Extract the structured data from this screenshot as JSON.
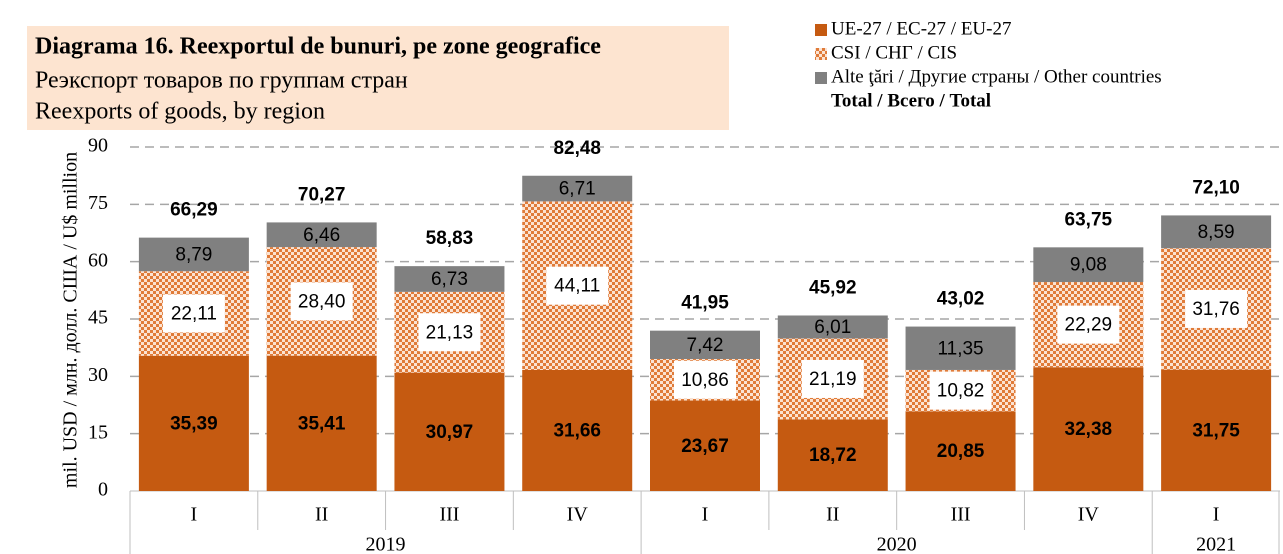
{
  "chart_data": {
    "type": "stacked_bar",
    "title": "Diagrama 16. Reexportul de bunuri, pe zone geografice",
    "subtitle": [
      "Реэкспорт товаров по группам стран",
      "Reexports of goods, by region"
    ],
    "y_label": "mil. USD / млн. долл. США / U$ million",
    "categories": [
      "I",
      "II",
      "III",
      "IV",
      "I",
      "II",
      "III",
      "IV",
      "I"
    ],
    "years": [
      "2019",
      "2019",
      "2019",
      "2019",
      "2020",
      "2020",
      "2020",
      "2020",
      "2021"
    ],
    "series": [
      {
        "name": "UE-27 / ЕС-27 / EU-27",
        "color": "#c55a11",
        "values": [
          35.39,
          35.41,
          30.97,
          31.66,
          23.67,
          18.72,
          20.85,
          32.38,
          31.75
        ],
        "value_labels": [
          "35,39",
          "35,41",
          "30,97",
          "31,66",
          "23,67",
          "18,72",
          "20,85",
          "32,38",
          "31,75"
        ]
      },
      {
        "name": "CSI / СНГ / CIS",
        "color": "#e07b39",
        "values": [
          22.11,
          28.4,
          21.13,
          44.11,
          10.86,
          21.19,
          10.82,
          22.29,
          31.76
        ],
        "value_labels": [
          "22,11",
          "28,40",
          "21,13",
          "44,11",
          "10,86",
          "21,19",
          "10,82",
          "22,29",
          "31,76"
        ]
      },
      {
        "name": "Alte ţări / Другие страны / Other countries",
        "color": "#808080",
        "values": [
          8.79,
          6.46,
          6.73,
          6.71,
          7.42,
          6.01,
          11.35,
          9.08,
          8.59
        ],
        "value_labels": [
          "8,79",
          "6,46",
          "6,73",
          "6,71",
          "7,42",
          "6,01",
          "11,35",
          "9,08",
          "8,59"
        ]
      }
    ],
    "total_name": "Total / Всего / Total",
    "totals": [
      66.29,
      70.27,
      58.83,
      82.48,
      41.95,
      45.92,
      43.02,
      63.75,
      72.1
    ],
    "total_labels": [
      "66,29",
      "70,27",
      "58,83",
      "82,48",
      "41,95",
      "45,92",
      "43,02",
      "63,75",
      "72,10"
    ],
    "ylim": [
      0,
      90
    ],
    "yticks": [
      0,
      15,
      30,
      45,
      60,
      75,
      90
    ],
    "grid": true
  }
}
